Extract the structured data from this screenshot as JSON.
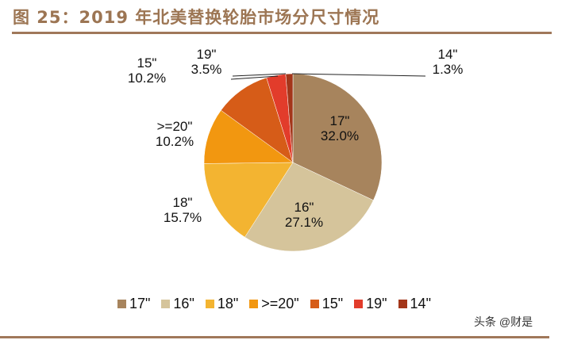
{
  "title": "图 25：2019 年北美替换轮胎市场分尺寸情况",
  "watermark": "头条 @财是",
  "chart_data": {
    "type": "pie",
    "title": "图 25：2019 年北美替换轮胎市场分尺寸情况",
    "categories": [
      "17\"",
      "16\"",
      "18\"",
      ">=20\"",
      "15\"",
      "19\"",
      "14\""
    ],
    "values": [
      32.0,
      27.1,
      15.7,
      10.2,
      10.2,
      3.5,
      1.3
    ],
    "labels": [
      "32.0%",
      "27.1%",
      "15.7%",
      "10.2%",
      "10.2%",
      "3.5%",
      "1.3%"
    ],
    "colors": [
      "#a7845d",
      "#d5c49b",
      "#f3b431",
      "#f29710",
      "#d65c18",
      "#e23c2b",
      "#a3361a"
    ],
    "start_angle": "12 o'clock, clockwise",
    "legend_position": "bottom"
  },
  "legend": [
    {
      "label": "17\"",
      "color": "#a7845d"
    },
    {
      "label": "16\"",
      "color": "#d5c49b"
    },
    {
      "label": "18\"",
      "color": "#f3b431"
    },
    {
      "label": ">=20\"",
      "color": "#f29710"
    },
    {
      "label": "15\"",
      "color": "#d65c18"
    },
    {
      "label": "19\"",
      "color": "#e23c2b"
    },
    {
      "label": "14\"",
      "color": "#a3361a"
    }
  ],
  "slice_labels": [
    {
      "name": "17\"",
      "pct": "32.0%"
    },
    {
      "name": "16\"",
      "pct": "27.1%"
    },
    {
      "name": "18\"",
      "pct": "15.7%"
    },
    {
      "name": ">=20\"",
      "pct": "10.2%"
    },
    {
      "name": "15\"",
      "pct": "10.2%"
    },
    {
      "name": "19\"",
      "pct": "3.5%"
    },
    {
      "name": "14\"",
      "pct": "1.3%"
    }
  ]
}
